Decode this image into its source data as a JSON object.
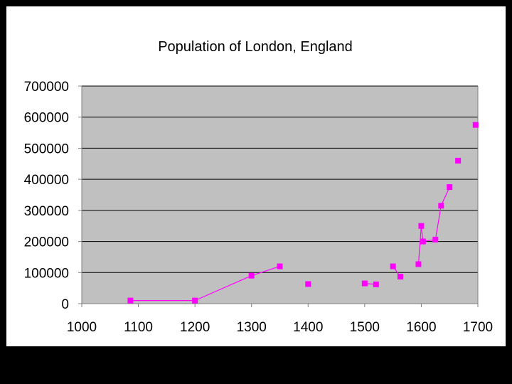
{
  "chart_data": {
    "type": "scatter",
    "title": "Population of London, England",
    "xlabel": "",
    "ylabel": "",
    "xlim": [
      1000,
      1700
    ],
    "ylim": [
      0,
      700000
    ],
    "x_ticks": [
      "1000",
      "1100",
      "1200",
      "1300",
      "1400",
      "1500",
      "1600",
      "1700"
    ],
    "y_ticks": [
      "0",
      "100000",
      "200000",
      "300000",
      "400000",
      "500000",
      "600000",
      "700000"
    ],
    "grid": "horizontal",
    "legend": "none",
    "colors": {
      "plot_bg": "#c0c0c0",
      "series": "#ff00ff",
      "gridline": "#000000",
      "axis": "#808080"
    },
    "series": [
      {
        "marker": "square",
        "points": [
          {
            "x": 1086,
            "y": 10000,
            "connect": true
          },
          {
            "x": 1200,
            "y": 10000,
            "connect": true
          },
          {
            "x": 1300,
            "y": 90000,
            "connect": true
          },
          {
            "x": 1350,
            "y": 120000,
            "connect": false
          },
          {
            "x": 1400,
            "y": 63000,
            "connect": false
          },
          {
            "x": 1500,
            "y": 65000,
            "connect": true
          },
          {
            "x": 1520,
            "y": 62000,
            "connect": false
          },
          {
            "x": 1550,
            "y": 120000,
            "connect": true
          },
          {
            "x": 1563,
            "y": 87000,
            "connect": false
          },
          {
            "x": 1595,
            "y": 127000,
            "connect": true
          },
          {
            "x": 1600,
            "y": 250000,
            "connect": true
          },
          {
            "x": 1603,
            "y": 200000,
            "connect": true
          },
          {
            "x": 1625,
            "y": 206000,
            "connect": true
          },
          {
            "x": 1635,
            "y": 315000,
            "connect": true
          },
          {
            "x": 1650,
            "y": 375000,
            "connect": false
          },
          {
            "x": 1665,
            "y": 460000,
            "connect": false
          },
          {
            "x": 1696,
            "y": 575000,
            "connect": false
          }
        ]
      }
    ]
  }
}
